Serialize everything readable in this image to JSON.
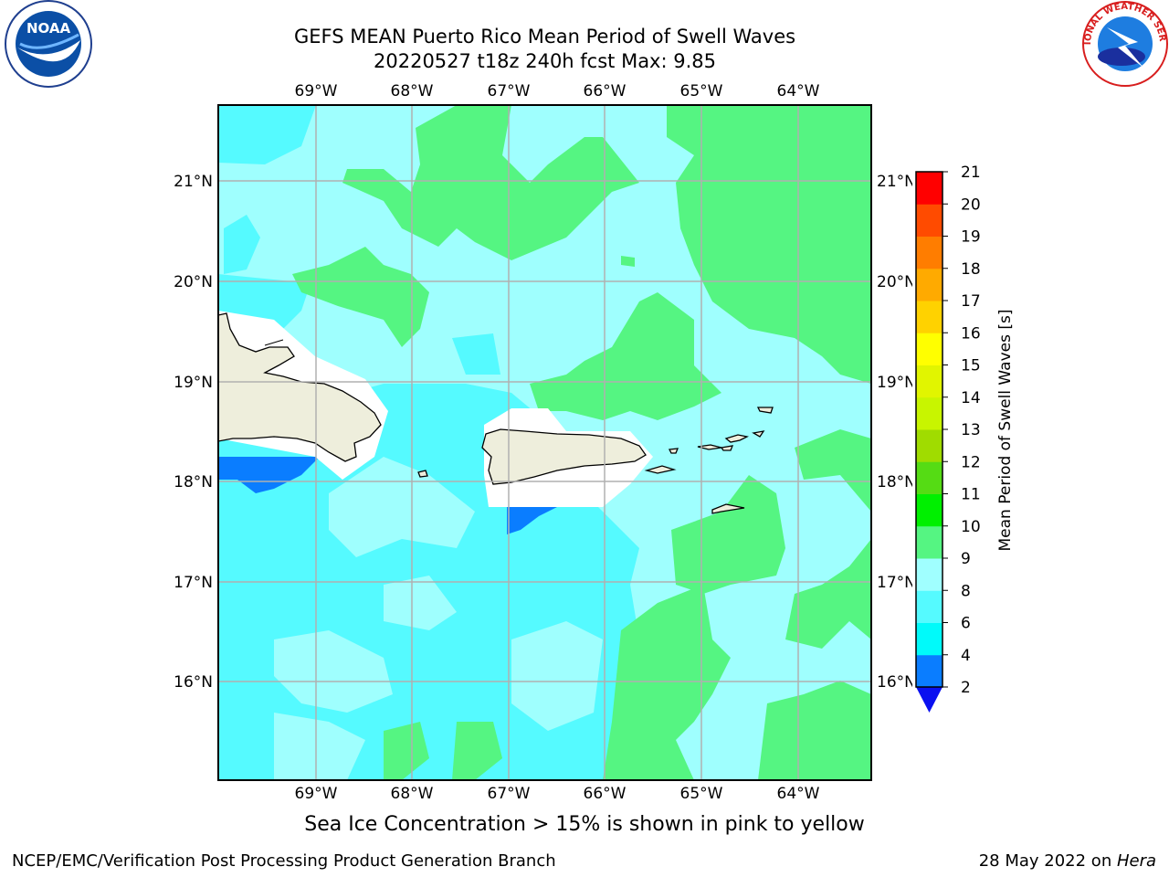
{
  "title_line1": "GEFS MEAN Puerto Rico Mean Period of Swell Waves",
  "title_line2": "20220527 t18z 240h fcst   Max: 9.85",
  "subtitle": "Sea Ice Concentration > 15% is shown in pink to yellow",
  "footer_left": "NCEP/EMC/Verification Post Processing Product Generation Branch",
  "footer_right_date": "28 May 2022 on ",
  "footer_right_machine": "Hera",
  "logos": {
    "left": "NOAA",
    "right": "NATIONAL WEATHER SERVICE"
  },
  "map": {
    "lon_labels": [
      "69°W",
      "68°W",
      "67°W",
      "66°W",
      "65°W",
      "64°W"
    ],
    "lat_labels": [
      "21°N",
      "20°N",
      "19°N",
      "18°N",
      "17°N",
      "16°N"
    ],
    "colors": {
      "land": "#eeeedc",
      "coast": "#000000",
      "grid": "#b0b0b0"
    }
  },
  "colorbar": {
    "label": "Mean Period of Swell Waves [s]",
    "ticks": [
      "2",
      "4",
      "6",
      "8",
      "9",
      "10",
      "11",
      "12",
      "13",
      "14",
      "15",
      "16",
      "17",
      "18",
      "19",
      "20",
      "21"
    ],
    "colors": [
      "#0a10f0",
      "#0a7dff",
      "#00fafa",
      "#55faff",
      "#a0ffff",
      "#55f582",
      "#00f000",
      "#55dc14",
      "#a0dc00",
      "#c8f500",
      "#e1f500",
      "#ffff00",
      "#ffd200",
      "#ffaa00",
      "#ff7d00",
      "#ff4b00",
      "#ff0000"
    ]
  },
  "legend_values_note": "under-range triangle colored #0a10f0"
}
